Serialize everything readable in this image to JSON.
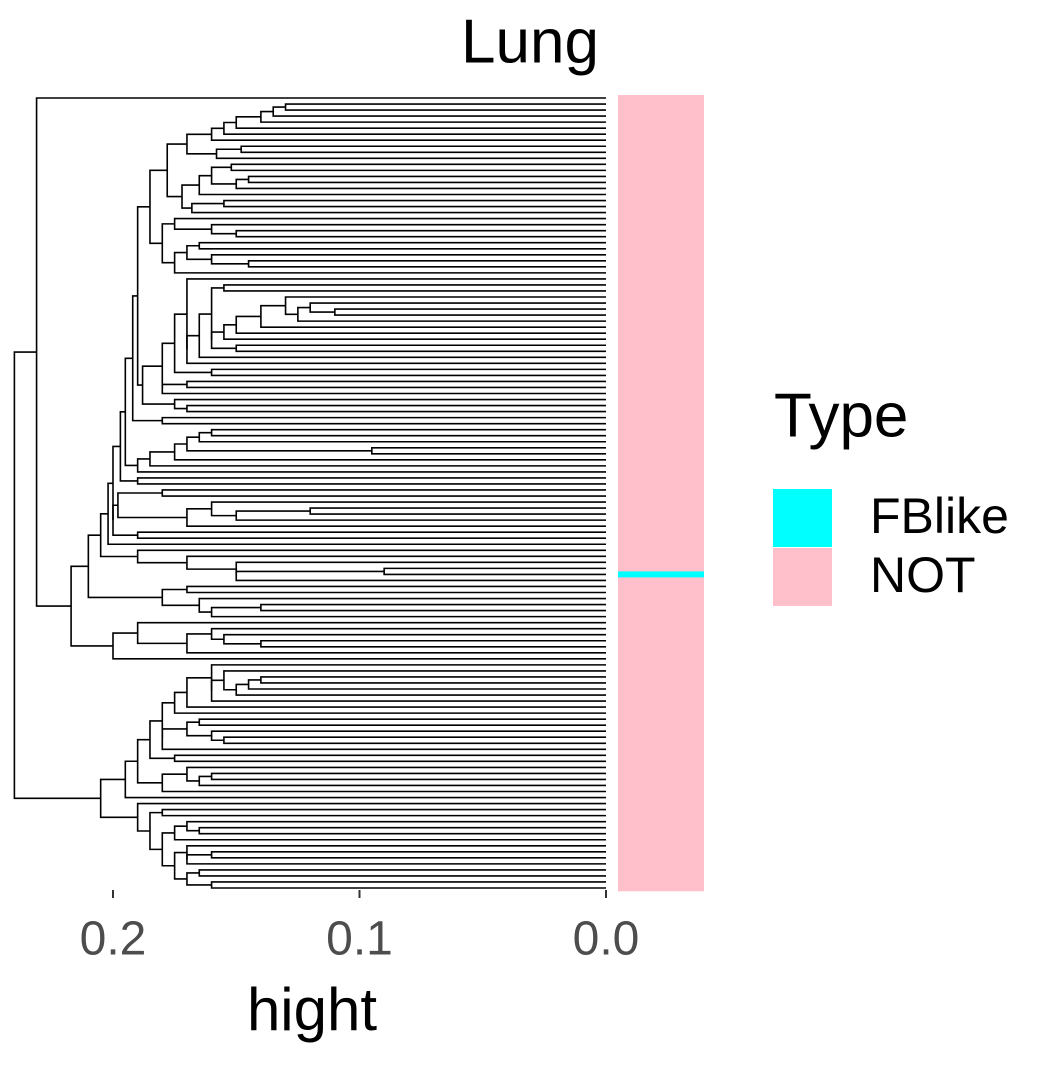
{
  "chart_data": {
    "type": "dendrogram",
    "title": "Lung",
    "xlabel": "hight",
    "xlim": [
      0.243,
      0
    ],
    "xticks": [
      0.2,
      0.1,
      {
        "value": 0,
        "label": "0.0"
      }
    ],
    "merge_heights": [
      0.231,
      0.13,
      0.135,
      0.14,
      0.15,
      0.155,
      0.16,
      0.17,
      0.148,
      0.158,
      0.178,
      0.152,
      0.16,
      0.145,
      0.15,
      0.165,
      0.172,
      0.155,
      0.168,
      0.185,
      0.175,
      0.16,
      0.15,
      0.18,
      0.165,
      0.17,
      0.16,
      0.145,
      0.175,
      0.19,
      0.17,
      0.155,
      0.16,
      0.13,
      0.12,
      0.11,
      0.125,
      0.14,
      0.15,
      0.155,
      0.16,
      0.15,
      0.165,
      0.17,
      0.175,
      0.16,
      0.18,
      0.17,
      0.18,
      0.188,
      0.175,
      0.17,
      0.192,
      0.18,
      0.195,
      0.16,
      0.165,
      0.17,
      0.095,
      0.175,
      0.185,
      0.19,
      0.197,
      0.19,
      0.2,
      0.18,
      0.198,
      0.16,
      0.12,
      0.15,
      0.17,
      0.2,
      0.19,
      0.202,
      0.205,
      0.19,
      0.17,
      0.15,
      0.09,
      0.15,
      0.21,
      0.17,
      0.18,
      0.165,
      0.14,
      0.16,
      0.217,
      0.19,
      0.16,
      0.155,
      0.14,
      0.17,
      0.2,
      0.24,
      0.16,
      0.155,
      0.14,
      0.145,
      0.15,
      0.16,
      0.17,
      0.175,
      0.18,
      0.165,
      0.17,
      0.16,
      0.155,
      0.18,
      0.185,
      0.175,
      0.19,
      0.17,
      0.16,
      0.165,
      0.18,
      0.195,
      0.205,
      0.19,
      0.18,
      0.185,
      0.17,
      0.165,
      0.175,
      0.18,
      0.17,
      0.16,
      0.17,
      0.175,
      0.165,
      0.17,
      0.16
    ],
    "leaf_type": [
      1,
      1,
      1,
      1,
      1,
      1,
      1,
      1,
      1,
      1,
      1,
      1,
      1,
      1,
      1,
      1,
      1,
      1,
      1,
      1,
      1,
      1,
      1,
      1,
      1,
      1,
      1,
      1,
      1,
      1,
      1,
      1,
      1,
      1,
      1,
      1,
      1,
      1,
      1,
      1,
      1,
      1,
      1,
      1,
      1,
      1,
      1,
      1,
      1,
      1,
      1,
      1,
      1,
      1,
      1,
      1,
      1,
      1,
      1,
      1,
      1,
      1,
      1,
      1,
      1,
      1,
      1,
      1,
      1,
      1,
      1,
      1,
      1,
      1,
      1,
      1,
      1,
      1,
      1,
      0,
      1,
      1,
      1,
      1,
      1,
      1,
      1,
      1,
      1,
      1,
      1,
      1,
      1,
      1,
      1,
      1,
      1,
      1,
      1,
      1,
      1,
      1,
      1,
      1,
      1,
      1,
      1,
      1,
      1,
      1,
      1,
      1,
      1,
      1,
      1,
      1,
      1,
      1,
      1,
      1,
      1,
      1,
      1,
      1,
      1,
      1,
      1,
      1,
      1,
      1,
      1,
      1
    ],
    "legend": {
      "title": "Type",
      "entries": [
        {
          "name": "FBlike",
          "color": "#00ffff"
        },
        {
          "name": "NOT",
          "color": "#ffc0cb"
        }
      ]
    }
  }
}
